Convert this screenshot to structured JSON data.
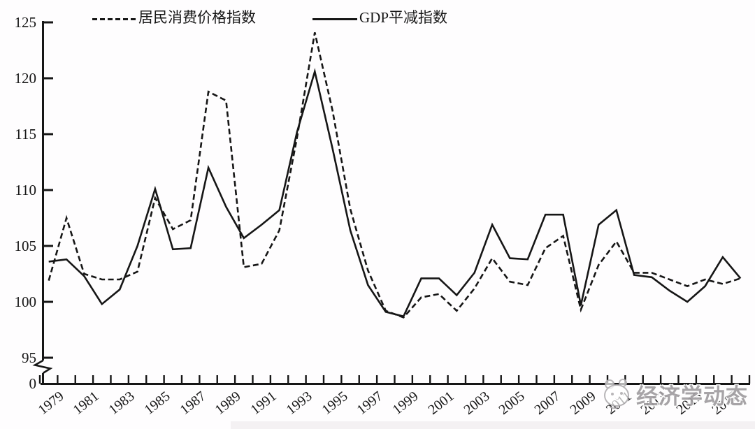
{
  "figure": {
    "background": "#ffffff",
    "axis_color": "#161616",
    "watermark": {
      "text": "经济学动态",
      "logo": "panda-face-logo",
      "color": "#a09da0"
    }
  },
  "chart_data": {
    "type": "line",
    "title": "",
    "xlabel": "",
    "ylabel": "",
    "grid": false,
    "legend_position": "top",
    "axis_break": true,
    "ylim": [
      95,
      125
    ],
    "y_tick_labels": [
      "125",
      "120",
      "115",
      "110",
      "105",
      "100",
      "95"
    ],
    "y_axis_break_label": "0",
    "x": [
      1979,
      1980,
      1981,
      1982,
      1983,
      1984,
      1985,
      1986,
      1987,
      1988,
      1989,
      1990,
      1991,
      1992,
      1993,
      1994,
      1995,
      1996,
      1997,
      1998,
      1999,
      2000,
      2001,
      2002,
      2003,
      2004,
      2005,
      2006,
      2007,
      2008,
      2009,
      2010,
      2011,
      2012,
      2013,
      2014,
      2015,
      2016,
      2017,
      2018
    ],
    "x_tick_labels": [
      "1979",
      "1981",
      "1983",
      "1985",
      "1987",
      "1989",
      "1991",
      "1993",
      "1995",
      "1997",
      "1999",
      "2001",
      "2003",
      "2005",
      "2007",
      "2009",
      "2011",
      "2013",
      "2015",
      "2017"
    ],
    "series": [
      {
        "name": "居民消费价格指数",
        "style": "dashed",
        "color": "#161616",
        "values": [
          101.9,
          107.5,
          102.5,
          102.0,
          102.0,
          102.7,
          109.3,
          106.5,
          107.3,
          118.8,
          118.0,
          103.1,
          103.4,
          106.4,
          114.7,
          124.1,
          117.1,
          108.3,
          102.8,
          99.2,
          98.6,
          100.4,
          100.7,
          99.2,
          101.2,
          103.9,
          101.8,
          101.5,
          104.8,
          105.9,
          99.3,
          103.3,
          105.4,
          102.6,
          102.6,
          102.0,
          101.4,
          102.0,
          101.6,
          102.1
        ]
      },
      {
        "name": "GDP平减指数",
        "style": "solid",
        "color": "#161616",
        "values": [
          103.6,
          103.8,
          102.3,
          99.8,
          101.1,
          105.0,
          110.1,
          104.7,
          104.8,
          112.0,
          108.5,
          105.7,
          106.9,
          108.2,
          115.2,
          120.6,
          113.7,
          106.4,
          101.5,
          99.1,
          98.7,
          102.1,
          102.1,
          100.6,
          102.6,
          106.9,
          103.9,
          103.8,
          107.8,
          107.8,
          99.7,
          106.9,
          108.2,
          102.4,
          102.2,
          101.0,
          100.0,
          101.4,
          104.0,
          102.1
        ]
      }
    ]
  }
}
